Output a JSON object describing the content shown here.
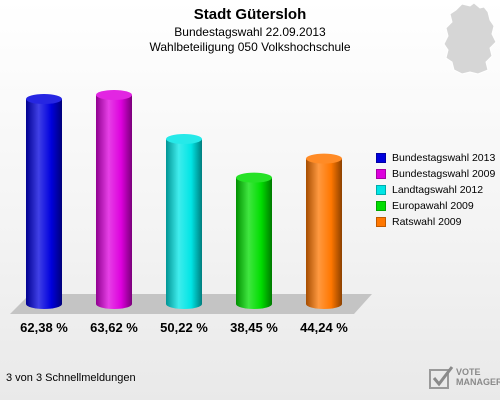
{
  "header": {
    "title": "Stadt Gütersloh",
    "subtitle": "Bundestagswahl 22.09.2013",
    "subtitle2": "Wahlbeteiligung 050 Volkshochschule"
  },
  "chart_data": {
    "type": "bar",
    "categories": [
      "Bundestagswahl 2013",
      "Bundestagswahl 2009",
      "Landtagswahl 2012",
      "Europawahl 2009",
      "Ratswahl 2009"
    ],
    "values": [
      62.38,
      63.62,
      50.22,
      38.45,
      44.24
    ],
    "value_labels": [
      "62,38 %",
      "63,62 %",
      "50,22 %",
      "38,45 %",
      "44,24 %"
    ],
    "colors": [
      "#0000dd",
      "#dd00dd",
      "#00e5e5",
      "#00dd00",
      "#ff7700"
    ],
    "legend_position": "right",
    "grid": false,
    "ylim": [
      0,
      70
    ]
  },
  "footnote": "3 von 3 Schnellmeldungen",
  "logo": {
    "line1": "VOTE",
    "line2": "MANAGER"
  }
}
